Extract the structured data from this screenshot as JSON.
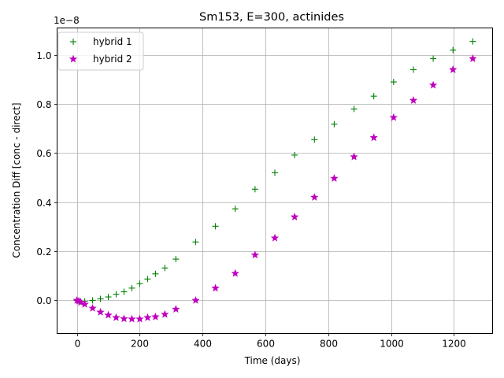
{
  "chart_data": {
    "type": "scatter",
    "title": "Sm153, E=300, actinides",
    "xlabel": "Time (days)",
    "ylabel": "Concentration Diff [conc - direct]",
    "y_offset_text": "1e−8",
    "xlim": [
      -63,
      1323
    ],
    "ylim": [
      -0.135,
      1.11
    ],
    "y_scale_factor": 1e-08,
    "x_ticks": [
      0,
      200,
      400,
      600,
      800,
      1000,
      1200
    ],
    "y_ticks": [
      0.0,
      0.2,
      0.4,
      0.6,
      0.8,
      1.0
    ],
    "y_tick_labels": [
      "0.0",
      "0.2",
      "0.4",
      "0.6",
      "0.8",
      "1.0"
    ],
    "grid": true,
    "legend_position": "upper-left",
    "x": [
      0,
      6,
      12,
      25,
      50,
      75,
      100,
      125,
      150,
      175,
      200,
      225,
      250,
      280,
      315,
      378,
      441,
      504,
      567,
      630,
      693,
      756,
      819,
      882,
      945,
      1008,
      1071,
      1134,
      1197,
      1260
    ],
    "series": [
      {
        "name": "hybrid 1",
        "marker": "plus",
        "color": "#008000",
        "values": [
          0.0,
          -0.002,
          -0.004,
          -0.004,
          0.0,
          0.006,
          0.014,
          0.025,
          0.035,
          0.05,
          0.068,
          0.087,
          0.108,
          0.132,
          0.168,
          0.238,
          0.302,
          0.373,
          0.453,
          0.52,
          0.592,
          0.655,
          0.718,
          0.78,
          0.832,
          0.89,
          0.94,
          0.985,
          1.02,
          1.055
        ]
      },
      {
        "name": "hybrid 2",
        "marker": "star",
        "color": "#BF00BF",
        "values": [
          0.0,
          -0.003,
          -0.008,
          -0.016,
          -0.032,
          -0.048,
          -0.06,
          -0.07,
          -0.075,
          -0.076,
          -0.076,
          -0.07,
          -0.067,
          -0.057,
          -0.036,
          0.0,
          0.05,
          0.11,
          0.185,
          0.254,
          0.34,
          0.42,
          0.497,
          0.585,
          0.663,
          0.745,
          0.815,
          0.877,
          0.94,
          0.985
        ]
      }
    ]
  }
}
